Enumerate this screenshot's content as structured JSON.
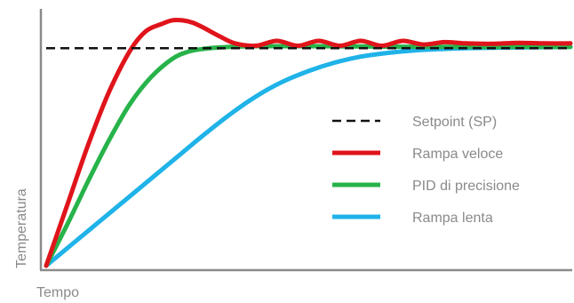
{
  "chart_data": {
    "type": "line",
    "title": "",
    "xlabel": "Tempo",
    "ylabel": "Temperatura",
    "xlim": [
      0,
      100
    ],
    "ylim": [
      0,
      100
    ],
    "grid": false,
    "legend_position": "center-right",
    "setpoint": {
      "name": "Setpoint (SP)",
      "color": "#111111",
      "style": "dashed",
      "value": 90
    },
    "series": [
      {
        "name": "Rampa veloce",
        "color": "#e0141b",
        "x": [
          0,
          4,
          8,
          12,
          16,
          19,
          22,
          24,
          26,
          28,
          30,
          33,
          36,
          40,
          44,
          48,
          52,
          56,
          60,
          64,
          68,
          72,
          76,
          80,
          85,
          90,
          95,
          100
        ],
        "y": [
          0,
          25,
          50,
          72,
          89,
          97,
          100,
          101.5,
          101.5,
          100.5,
          98.5,
          95,
          92,
          91,
          93,
          91,
          93,
          91,
          93,
          91,
          93,
          91.5,
          92.5,
          92,
          91.8,
          92.2,
          92,
          92
        ]
      },
      {
        "name": "PID di precisione",
        "color": "#27b34a",
        "x": [
          0,
          4,
          8,
          12,
          16,
          20,
          24,
          27,
          30,
          33,
          36,
          40,
          45,
          50,
          60,
          70,
          80,
          90,
          100
        ],
        "y": [
          0,
          17,
          35,
          52,
          67,
          78,
          85.5,
          88.5,
          89.7,
          90.3,
          90.6,
          90.8,
          90.8,
          90.8,
          90.7,
          90.6,
          90.5,
          90.5,
          90.5
        ]
      },
      {
        "name": "Rampa lenta",
        "color": "#1fb3e8",
        "x": [
          0,
          5,
          10,
          15,
          20,
          25,
          30,
          35,
          40,
          45,
          50,
          55,
          60,
          65,
          70,
          75,
          80,
          85,
          90,
          95,
          100
        ],
        "y": [
          0,
          9,
          18,
          27,
          36,
          45,
          54,
          62.5,
          70,
          76,
          80.5,
          84,
          86.5,
          88,
          89,
          89.6,
          90,
          90.2,
          90.3,
          90.4,
          90.5
        ]
      }
    ]
  }
}
